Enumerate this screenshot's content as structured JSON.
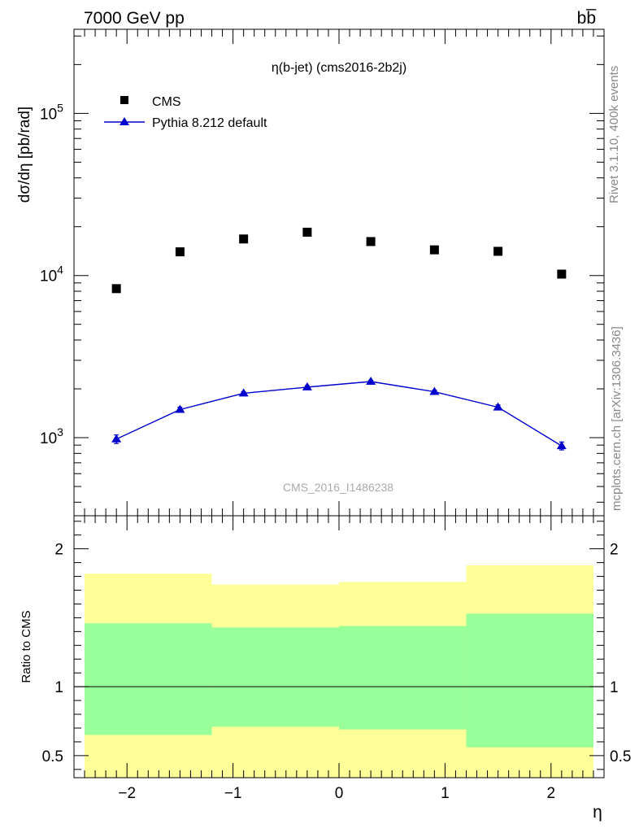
{
  "header": {
    "left": "7000 GeV pp",
    "right": "bb̅"
  },
  "side_labels": {
    "rivet": "Rivet 3.1.10,  400k events",
    "source": "mcplots.cern.ch [arXiv:1306.3436]"
  },
  "watermark": "CMS_2016_I1486238",
  "colors": {
    "cms": "#000000",
    "pythia": "#0000cc",
    "band_inner": "#99ff99",
    "band_outer": "#ffff99"
  },
  "chart_data": [
    {
      "type": "scatter",
      "title": "η(b-jet) (cms2016-2b2j)",
      "ylabel": "dσ/dη [pb/rad]",
      "yscale": "log",
      "ylim": [
        330,
        330000
      ],
      "xlim": [
        -2.5,
        2.5
      ],
      "yticks": [
        {
          "value": 1000,
          "base": "10",
          "exp": "3"
        },
        {
          "value": 10000,
          "base": "10",
          "exp": "4"
        },
        {
          "value": 100000,
          "base": "10",
          "exp": "5"
        }
      ],
      "legend_position": "top-left",
      "series": [
        {
          "name": "CMS",
          "marker": "square",
          "x": [
            -2.1,
            -1.5,
            -0.9,
            -0.3,
            0.3,
            0.9,
            1.5,
            2.1
          ],
          "y": [
            8300,
            14000,
            16800,
            18500,
            16200,
            14400,
            14100,
            10200
          ]
        },
        {
          "name": "Pythia 8.212 default",
          "marker": "triangle",
          "line": true,
          "x": [
            -2.1,
            -1.5,
            -0.9,
            -0.3,
            0.3,
            0.9,
            1.5,
            2.1
          ],
          "y": [
            980,
            1490,
            1880,
            2050,
            2220,
            1920,
            1540,
            890
          ],
          "yerr": [
            60,
            50,
            40,
            40,
            40,
            40,
            50,
            50
          ]
        }
      ]
    },
    {
      "type": "area",
      "ylabel": "Ratio to CMS",
      "xlabel": "η",
      "xlim": [
        -2.5,
        2.5
      ],
      "ylim": [
        0.34,
        2.24
      ],
      "xticks": [
        {
          "value": -2,
          "label": "−2"
        },
        {
          "value": -1,
          "label": "−1"
        },
        {
          "value": 0,
          "label": "0"
        },
        {
          "value": 1,
          "label": "1"
        },
        {
          "value": 2,
          "label": "2"
        }
      ],
      "yticks": [
        {
          "value": 0.5,
          "label": "0.5"
        },
        {
          "value": 1,
          "label": "1"
        },
        {
          "value": 2,
          "label": "2"
        }
      ],
      "reference_line": 1,
      "bins": [
        {
          "x0": -2.4,
          "x1": -1.2,
          "outer": [
            0.34,
            1.82
          ],
          "inner": [
            0.65,
            1.46
          ]
        },
        {
          "x0": -1.2,
          "x1": 0.0,
          "outer": [
            0.34,
            1.74
          ],
          "inner": [
            0.71,
            1.43
          ]
        },
        {
          "x0": 0.0,
          "x1": 1.2,
          "outer": [
            0.34,
            1.76
          ],
          "inner": [
            0.69,
            1.44
          ]
        },
        {
          "x0": 1.2,
          "x1": 2.4,
          "outer": [
            0.34,
            1.88
          ],
          "inner": [
            0.56,
            1.53
          ]
        }
      ]
    }
  ]
}
